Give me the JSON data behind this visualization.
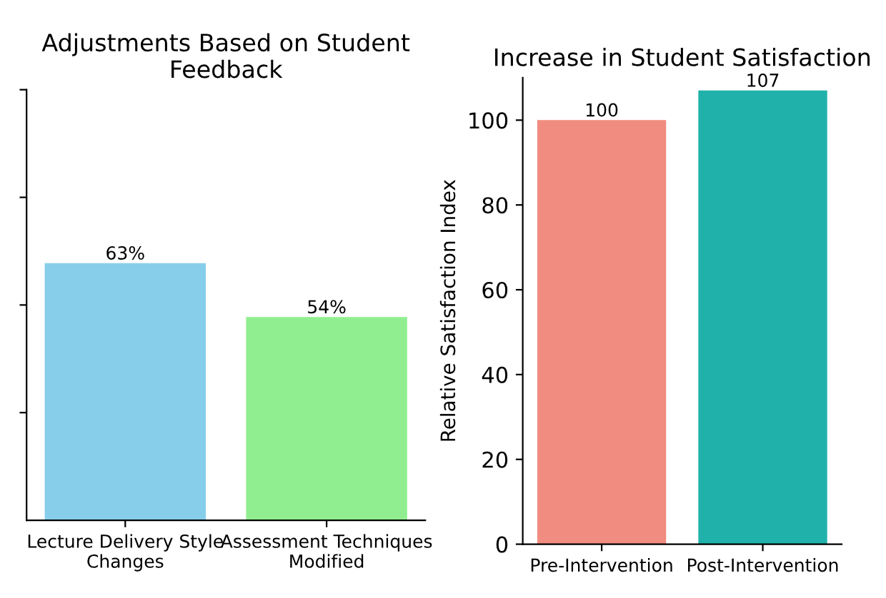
{
  "chart_data": [
    {
      "type": "bar",
      "title": "Adjustments Based on Student\nFeedback",
      "categories": [
        "Lecture Delivery Style\nChanges",
        "Assessment Techniques\nModified"
      ],
      "values": [
        63,
        54
      ],
      "colors": [
        "#87ceeb",
        "#90ee90"
      ],
      "value_labels": [
        "63%",
        "54%"
      ],
      "ylim": [
        20,
        92
      ],
      "yticks": [
        {
          "value": 38,
          "label": null
        },
        {
          "value": 56,
          "label": null
        },
        {
          "value": 74,
          "label": null
        },
        {
          "value": 92,
          "label": null
        }
      ],
      "tick_labels": "x",
      "grid": false,
      "legend": false
    },
    {
      "type": "bar",
      "title": "Increase in Student Satisfaction",
      "ylabel": "Relative Satisfaction Index",
      "categories": [
        "Pre-Intervention",
        "Post-Intervention"
      ],
      "values": [
        100,
        107
      ],
      "colors": [
        "#f08c80",
        "#20b2aa"
      ],
      "data_labels": true,
      "ylim": [
        0,
        110
      ],
      "yticks": [
        0,
        20,
        40,
        60,
        80,
        100
      ],
      "grid": false,
      "legend": false
    }
  ]
}
